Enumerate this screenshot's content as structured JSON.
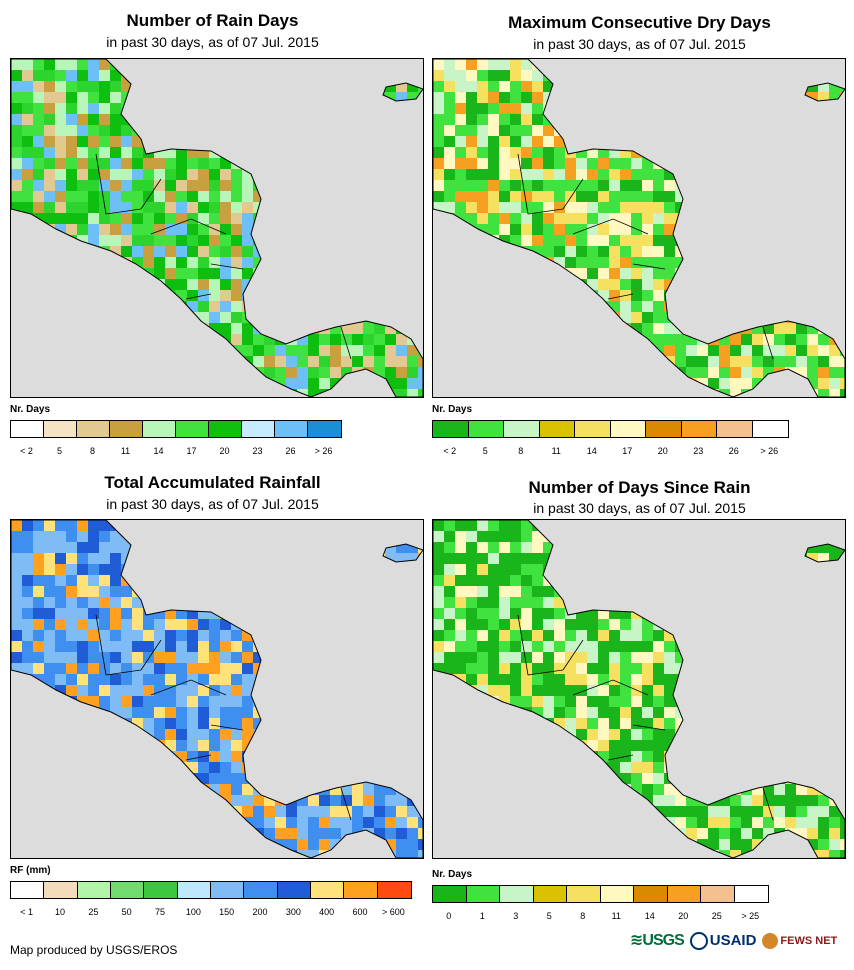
{
  "panels": [
    {
      "id": "rain_days",
      "title": "Number of Rain Days",
      "subtitle": "in past 30 days, as of 07 Jul. 2015",
      "legend_title": "Nr. Days",
      "legend_colors": [
        "#ffffff",
        "#f5e3c3",
        "#e2c891",
        "#c9a040",
        "#b8f5b8",
        "#3fe23f",
        "#0fbf0f",
        "#c8ecff",
        "#6cc0f5",
        "#1a8fd6"
      ],
      "legend_labels": [
        "< 2",
        "5",
        "8",
        "11",
        "14",
        "17",
        "20",
        "23",
        "26",
        "> 26"
      ],
      "palette": [
        "#3fe23f",
        "#0fbf0f",
        "#2dd42d",
        "#b8f5b8",
        "#c9a040",
        "#e2c891",
        "#6cc0f5"
      ]
    },
    {
      "id": "max_dry",
      "title": "Maximum Consecutive Dry Days",
      "subtitle": "in past 30 days, as of 07 Jul. 2015",
      "legend_title": "Nr. Days",
      "legend_colors": [
        "#1ab51a",
        "#3fe23f",
        "#c8f5c8",
        "#d9c300",
        "#f5e060",
        "#fff8c0",
        "#d98a00",
        "#f5a020",
        "#f5c090",
        "#ffffff"
      ],
      "legend_labels": [
        "< 2",
        "5",
        "8",
        "11",
        "14",
        "17",
        "20",
        "23",
        "26",
        "> 26"
      ],
      "palette": [
        "#3fe23f",
        "#1ab51a",
        "#3fe23f",
        "#c8f5c8",
        "#f5e060",
        "#fff8c0",
        "#f5a020"
      ]
    },
    {
      "id": "total_rain",
      "title": "Total Accumulated Rainfall",
      "subtitle": "in past 30 days, as of 07 Jul. 2015",
      "legend_title": "RF (mm)",
      "legend_colors": [
        "#ffffff",
        "#f2dcbc",
        "#b3f5a8",
        "#6fdc6f",
        "#3cc83c",
        "#bfe8ff",
        "#7fbcf5",
        "#3f8ff0",
        "#1f5cd6",
        "#ffe27a",
        "#ffa020",
        "#ff4a10"
      ],
      "legend_labels": [
        "< 1",
        "10",
        "25",
        "50",
        "75",
        "100",
        "150",
        "200",
        "300",
        "400",
        "600",
        "> 600"
      ],
      "palette": [
        "#3f8ff0",
        "#7fbcf5",
        "#1f5cd6",
        "#3f8ff0",
        "#ffe27a",
        "#7fbcf5",
        "#ffa020"
      ]
    },
    {
      "id": "days_since",
      "title": "Number of Days Since Rain",
      "subtitle": "in past 30 days, as of 07 Jul. 2015",
      "legend_title": "Nr. Days",
      "legend_colors": [
        "#1ab51a",
        "#3fe23f",
        "#c8f5c8",
        "#d9c300",
        "#f5e060",
        "#fff8c0",
        "#d98a00",
        "#f5a020",
        "#f5c090",
        "#ffffff"
      ],
      "legend_labels": [
        "0",
        "1",
        "3",
        "5",
        "8",
        "11",
        "14",
        "20",
        "25",
        "> 25"
      ],
      "palette": [
        "#1ab51a",
        "#1ab51a",
        "#3fe23f",
        "#c8f5c8",
        "#f5e060",
        "#1ab51a",
        "#fff8c0"
      ]
    }
  ],
  "footer": {
    "credit": "Map produced by USGS/EROS",
    "logos": [
      "USGS",
      "USAID",
      "FEWS NET"
    ]
  },
  "colors": {
    "ocean": "#dcdcdc",
    "border": "#000000"
  }
}
